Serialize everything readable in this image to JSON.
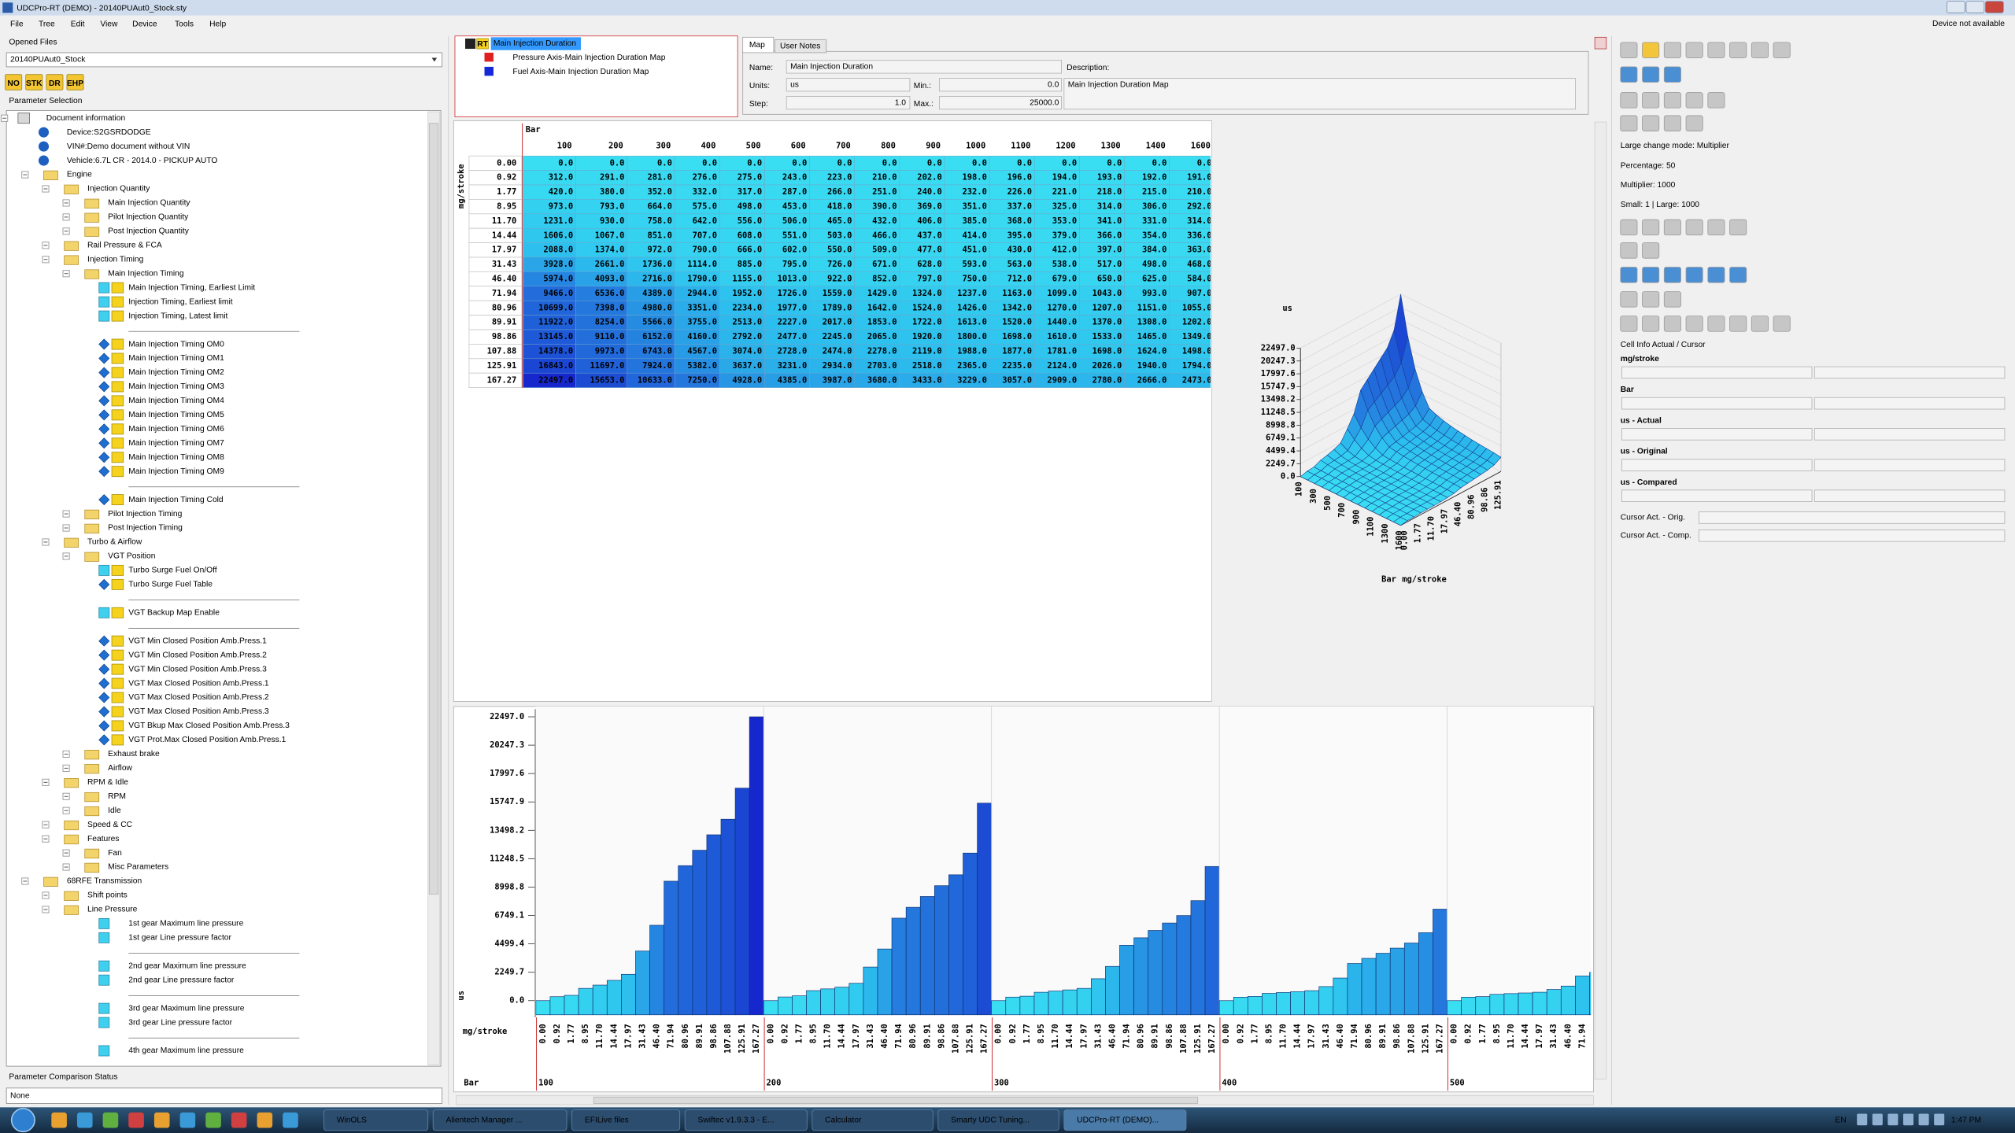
{
  "window": {
    "title": "UDCPro-RT (DEMO) - 20140PUAut0_Stock.sty",
    "status": "Device not available"
  },
  "menu": [
    "File",
    "Tree",
    "Edit",
    "View",
    "Device",
    "Tools",
    "Help"
  ],
  "left_panel": {
    "opened_files_label": "Opened Files",
    "opened_file": "20140PUAut0_Stock",
    "toolbar": [
      "NO",
      "STK",
      "DR",
      "EHP"
    ],
    "parameter_selection_label": "Parameter Selection",
    "tree": [
      "Document information",
      "Device:S2GSRDODGE",
      "VIN#:Demo document without VIN",
      "Vehicle:6.7L CR - 2014.0 - PICKUP AUTO",
      "Engine",
      "Injection Quantity",
      "Main Injection Quantity",
      "Pilot Injection Quantity",
      "Post Injection Quantity",
      "Rail Pressure & FCA",
      "Injection Timing",
      "Main Injection Timing",
      "Main Injection Timing, Earliest Limit",
      "Injection Timing, Earliest limit",
      "Injection Timing, Latest limit",
      "Main Injection Timing OM0",
      "Main Injection Timing OM1",
      "Main Injection Timing OM2",
      "Main Injection Timing OM3",
      "Main Injection Timing OM4",
      "Main Injection Timing OM5",
      "Main Injection Timing OM6",
      "Main Injection Timing OM7",
      "Main Injection Timing OM8",
      "Main Injection Timing OM9",
      "Main Injection Timing Cold",
      "Pilot Injection Timing",
      "Post Injection Timing",
      "Turbo & Airflow",
      "VGT Position",
      "Turbo Surge Fuel On/Off",
      "Turbo Surge Fuel Table",
      "VGT Backup Map Enable",
      "VGT Min Closed Position Amb.Press.1",
      "VGT Min Closed Position Amb.Press.2",
      "VGT Min Closed Position Amb.Press.3",
      "VGT Max Closed Position Amb.Press.1",
      "VGT Max Closed Position Amb.Press.2",
      "VGT Max Closed Position Amb.Press.3",
      "VGT Bkup Max Closed Position Amb.Press.3",
      "VGT Prot.Max Closed Position Amb.Press.1",
      "Exhaust brake",
      "Airflow",
      "RPM & Idle",
      "RPM",
      "Idle",
      "Speed & CC",
      "Features",
      "Fan",
      "Misc Parameters",
      "68RFE Transmission",
      "Shift points",
      "Line Pressure",
      "1st gear Maximum line pressure",
      "1st gear Line pressure factor",
      "2nd gear Maximum line pressure",
      "2nd gear Line pressure factor",
      "3rd gear Maximum line pressure",
      "3rd gear Line pressure factor",
      "4th gear Maximum line pressure"
    ],
    "comparison_label": "Parameter Comparison Status",
    "comparison_value": "None"
  },
  "legend": {
    "rt": "RT",
    "items": [
      "Main Injection Duration",
      "Pressure Axis-Main Injection Duration Map",
      "Fuel Axis-Main Injection Duration Map"
    ]
  },
  "properties": {
    "tabs": [
      "Map",
      "User Notes"
    ],
    "name_label": "Name:",
    "name": "Main Injection Duration",
    "description_label": "Description:",
    "units_label": "Units:",
    "units": "us",
    "min_label": "Min.:",
    "min": "0.0",
    "step_label": "Step:",
    "step": "1.0",
    "max_label": "Max.:",
    "max": "25000.0",
    "description": "Main Injection Duration Map"
  },
  "table": {
    "column_axis": "Bar",
    "row_axis": "mg/stroke",
    "columns": [
      "100",
      "200",
      "300",
      "400",
      "500",
      "600",
      "700",
      "800",
      "900",
      "1000",
      "1100",
      "1200",
      "1300",
      "1400",
      "1600"
    ],
    "row_labels": [
      "0.00",
      "0.92",
      "1.77",
      "8.95",
      "11.70",
      "14.44",
      "17.97",
      "31.43",
      "46.40",
      "71.94",
      "80.96",
      "89.91",
      "98.86",
      "107.88",
      "125.91",
      "167.27"
    ],
    "rows": [
      [
        "0.0",
        "0.0",
        "0.0",
        "0.0",
        "0.0",
        "0.0",
        "0.0",
        "0.0",
        "0.0",
        "0.0",
        "0.0",
        "0.0",
        "0.0",
        "0.0",
        "0.0"
      ],
      [
        "312.0",
        "291.0",
        "281.0",
        "276.0",
        "275.0",
        "243.0",
        "223.0",
        "210.0",
        "202.0",
        "198.0",
        "196.0",
        "194.0",
        "193.0",
        "192.0",
        "191.0"
      ],
      [
        "420.0",
        "380.0",
        "352.0",
        "332.0",
        "317.0",
        "287.0",
        "266.0",
        "251.0",
        "240.0",
        "232.0",
        "226.0",
        "221.0",
        "218.0",
        "215.0",
        "210.0"
      ],
      [
        "973.0",
        "793.0",
        "664.0",
        "575.0",
        "498.0",
        "453.0",
        "418.0",
        "390.0",
        "369.0",
        "351.0",
        "337.0",
        "325.0",
        "314.0",
        "306.0",
        "292.0"
      ],
      [
        "1231.0",
        "930.0",
        "758.0",
        "642.0",
        "556.0",
        "506.0",
        "465.0",
        "432.0",
        "406.0",
        "385.0",
        "368.0",
        "353.0",
        "341.0",
        "331.0",
        "314.0"
      ],
      [
        "1606.0",
        "1067.0",
        "851.0",
        "707.0",
        "608.0",
        "551.0",
        "503.0",
        "466.0",
        "437.0",
        "414.0",
        "395.0",
        "379.0",
        "366.0",
        "354.0",
        "336.0"
      ],
      [
        "2088.0",
        "1374.0",
        "972.0",
        "790.0",
        "666.0",
        "602.0",
        "550.0",
        "509.0",
        "477.0",
        "451.0",
        "430.0",
        "412.0",
        "397.0",
        "384.0",
        "363.0"
      ],
      [
        "3928.0",
        "2661.0",
        "1736.0",
        "1114.0",
        "885.0",
        "795.0",
        "726.0",
        "671.0",
        "628.0",
        "593.0",
        "563.0",
        "538.0",
        "517.0",
        "498.0",
        "468.0"
      ],
      [
        "5974.0",
        "4093.0",
        "2716.0",
        "1790.0",
        "1155.0",
        "1013.0",
        "922.0",
        "852.0",
        "797.0",
        "750.0",
        "712.0",
        "679.0",
        "650.0",
        "625.0",
        "584.0"
      ],
      [
        "9466.0",
        "6536.0",
        "4389.0",
        "2944.0",
        "1952.0",
        "1726.0",
        "1559.0",
        "1429.0",
        "1324.0",
        "1237.0",
        "1163.0",
        "1099.0",
        "1043.0",
        "993.0",
        "907.0"
      ],
      [
        "10699.0",
        "7398.0",
        "4980.0",
        "3351.0",
        "2234.0",
        "1977.0",
        "1789.0",
        "1642.0",
        "1524.0",
        "1426.0",
        "1342.0",
        "1270.0",
        "1207.0",
        "1151.0",
        "1055.0"
      ],
      [
        "11922.0",
        "8254.0",
        "5566.0",
        "3755.0",
        "2513.0",
        "2227.0",
        "2017.0",
        "1853.0",
        "1722.0",
        "1613.0",
        "1520.0",
        "1440.0",
        "1370.0",
        "1308.0",
        "1202.0"
      ],
      [
        "13145.0",
        "9110.0",
        "6152.0",
        "4160.0",
        "2792.0",
        "2477.0",
        "2245.0",
        "2065.0",
        "1920.0",
        "1800.0",
        "1698.0",
        "1610.0",
        "1533.0",
        "1465.0",
        "1349.0"
      ],
      [
        "14378.0",
        "9973.0",
        "6743.0",
        "4567.0",
        "3074.0",
        "2728.0",
        "2474.0",
        "2278.0",
        "2119.0",
        "1988.0",
        "1877.0",
        "1781.0",
        "1698.0",
        "1624.0",
        "1498.0"
      ],
      [
        "16843.0",
        "11697.0",
        "7924.0",
        "5382.0",
        "3637.0",
        "3231.0",
        "2934.0",
        "2703.0",
        "2518.0",
        "2365.0",
        "2235.0",
        "2124.0",
        "2026.0",
        "1940.0",
        "1794.0"
      ],
      [
        "22497.0",
        "15653.0",
        "10633.0",
        "7250.0",
        "4928.0",
        "4385.0",
        "3987.0",
        "3680.0",
        "3433.0",
        "3229.0",
        "3057.0",
        "2909.0",
        "2780.0",
        "2666.0",
        "2473.0"
      ]
    ]
  },
  "surface": {
    "z_label": "us",
    "x_label": "Bar",
    "y_label": "mg/stroke",
    "zlim": [
      0,
      22497
    ]
  },
  "profile_chart": {
    "type": "bar",
    "y_label": "us",
    "x_label": "mg/stroke",
    "group_label": "Bar",
    "ylim": [
      -1125,
      22497
    ],
    "yticks": [
      {
        "value": 0,
        "label": "0.0"
      },
      {
        "value": 2249.7,
        "label": "2249.7"
      },
      {
        "value": 4499.4,
        "label": "4499.4"
      },
      {
        "value": 6749.1,
        "label": "6749.1"
      },
      {
        "value": 8998.8,
        "label": "8998.8"
      },
      {
        "value": 11248.5,
        "label": "11248.5"
      },
      {
        "value": 13498.2,
        "label": "13498.2"
      },
      {
        "value": 15747.9,
        "label": "15747.9"
      },
      {
        "value": 17997.6,
        "label": "17997.6"
      },
      {
        "value": 20247.3,
        "label": "20247.3"
      },
      {
        "value": 22497,
        "label": "22497.0"
      }
    ]
  },
  "right_panel": {
    "large_change_mode": "Large change mode: Multiplier",
    "percentage": "Percentage: 50",
    "multiplier": "Multiplier: 1000",
    "small_large": "Small: 1 | Large: 1000",
    "cell_info": "Cell Info Actual / Cursor",
    "fields": [
      "mg/stroke",
      "Bar",
      "us - Actual",
      "us - Original",
      "us - Compared"
    ],
    "cursor_fields": [
      "Cursor Act. - Orig.",
      "Cursor Act. - Comp."
    ]
  },
  "taskbar": {
    "items": [
      "WinOLS",
      "Alientech Manager ...",
      "EFILive files",
      "Swiftec v1.9.3.3 - E...",
      "Calculator",
      "Smarty UDC Tuning...",
      "UDCPro-RT (DEMO)..."
    ],
    "language": "EN",
    "clock": "1:47 PM"
  }
}
